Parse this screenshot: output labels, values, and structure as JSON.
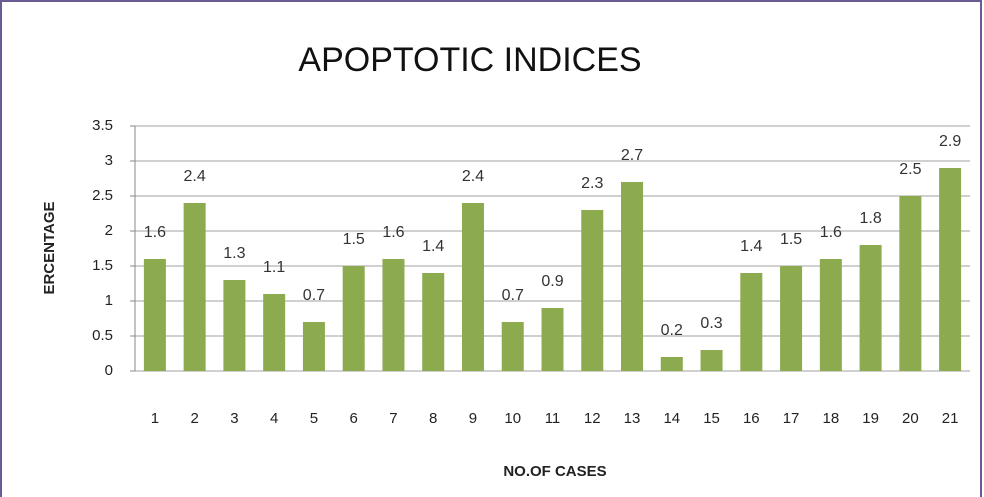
{
  "chart_data": {
    "type": "bar",
    "title": "APOPTOTIC INDICES",
    "x_label": "NO.OF CASES",
    "y_label": "ERCENTAGE",
    "categories": [
      "1",
      "2",
      "3",
      "4",
      "5",
      "6",
      "7",
      "8",
      "9",
      "10",
      "11",
      "12",
      "13",
      "14",
      "15",
      "16",
      "17",
      "18",
      "19",
      "20",
      "21"
    ],
    "values": [
      1.6,
      2.4,
      1.3,
      1.1,
      0.7,
      1.5,
      1.6,
      1.4,
      2.4,
      0.7,
      0.9,
      2.3,
      2.7,
      0.2,
      0.3,
      1.4,
      1.5,
      1.6,
      1.8,
      2.5,
      2.9
    ],
    "color": "#8caa4e",
    "ylim": [
      0,
      3.5
    ],
    "yticks": [
      0,
      0.5,
      1,
      1.5,
      2,
      2.5,
      3,
      3.5
    ],
    "grid": true
  }
}
